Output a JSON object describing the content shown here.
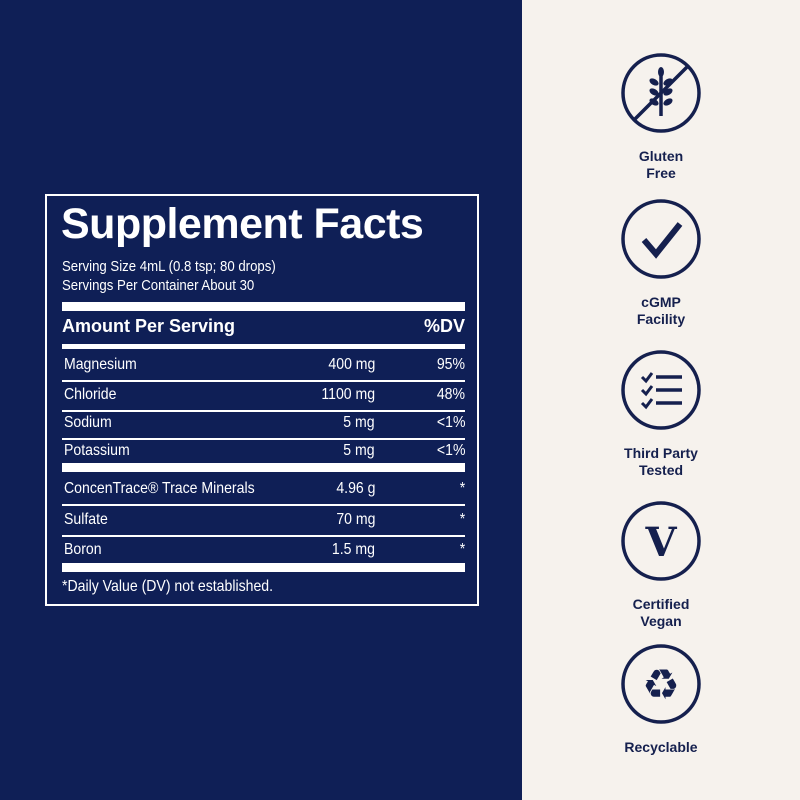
{
  "facts": {
    "title": "Supplement Facts",
    "serving_size": "Serving Size 4mL (0.8 tsp; 80 drops)",
    "servings_per_container": "Servings Per Container About 30",
    "header_left": "Amount Per Serving",
    "header_right": "%DV",
    "rows": [
      {
        "name": "Magnesium",
        "amount": "400 mg",
        "dv": "95%"
      },
      {
        "name": "Chloride",
        "amount": "1100 mg",
        "dv": "48%"
      },
      {
        "name": "Sodium",
        "amount": "5 mg",
        "dv": "<1%"
      },
      {
        "name": "Potassium",
        "amount": "5 mg",
        "dv": "<1%"
      },
      {
        "name": "ConcenTrace® Trace Minerals",
        "amount": "4.96 g",
        "dv": "*"
      },
      {
        "name": "Sulfate",
        "amount": "70 mg",
        "dv": "*"
      },
      {
        "name": "Boron",
        "amount": "1.5 mg",
        "dv": "*"
      }
    ],
    "footnote": "*Daily Value (DV) not established."
  },
  "badges": [
    {
      "icon": "gluten-free-icon",
      "line1": "Gluten",
      "line2": "Free"
    },
    {
      "icon": "checkmark-icon",
      "line1": "cGMP",
      "line2": "Facility"
    },
    {
      "icon": "checklist-icon",
      "line1": "Third Party",
      "line2": "Tested"
    },
    {
      "icon": "vegan-v-icon",
      "line1": "Certified",
      "line2": "Vegan"
    },
    {
      "icon": "recycle-icon",
      "line1": "Recyclable",
      "line2": ""
    }
  ],
  "colors": {
    "navy": "#0f1f56",
    "cream": "#f6f2ed",
    "icon": "#15204e"
  }
}
